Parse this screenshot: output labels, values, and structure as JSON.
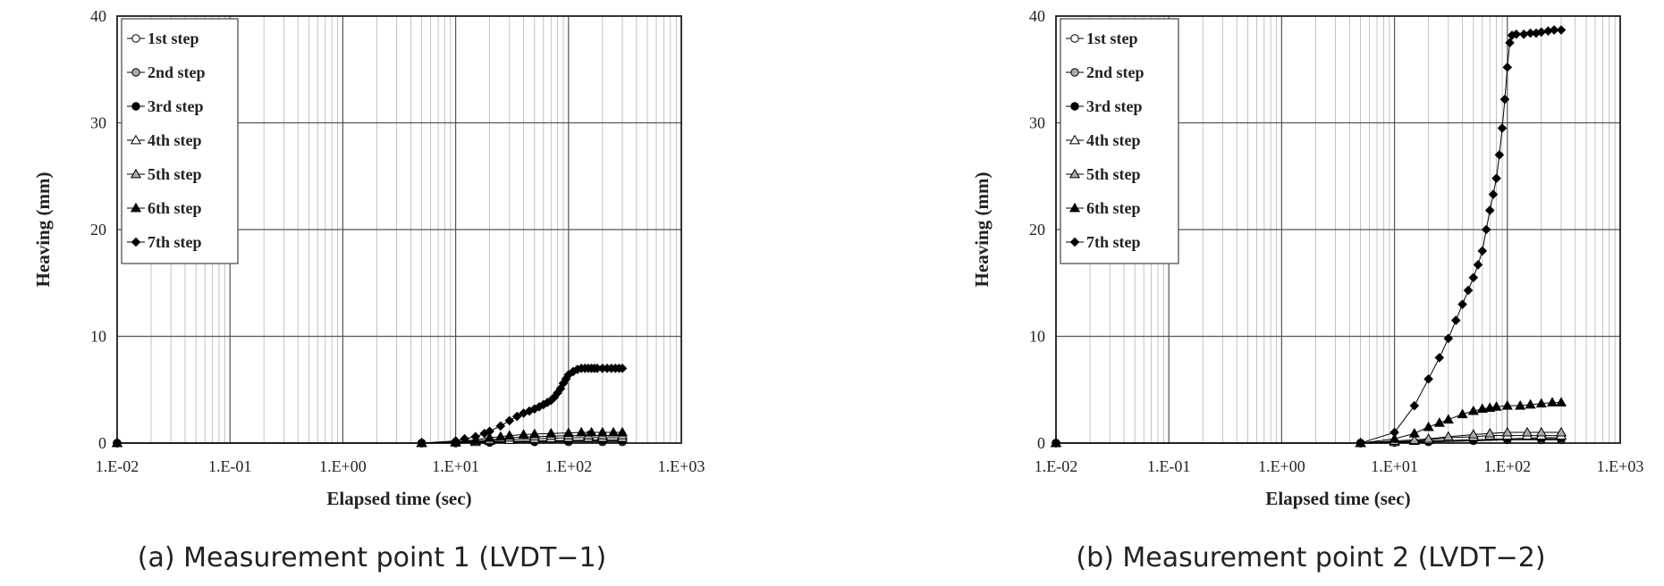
{
  "chart_data": [
    {
      "type": "scatter",
      "caption": "(a) Measurement point 1 (LVDT−1)",
      "xlabel": "Elapsed time (sec)",
      "ylabel": "Heaving (mm)",
      "xscale": "log",
      "xlim": [
        0.01,
        1000
      ],
      "ylim": [
        0,
        40
      ],
      "xticks": [
        "1.E-02",
        "1.E-01",
        "1.E+00",
        "1.E+01",
        "1.E+02",
        "1.E+03"
      ],
      "yticks": [
        "0",
        "10",
        "20",
        "30",
        "40"
      ],
      "legend_position": "top-left",
      "series": [
        {
          "name": "1st step",
          "marker": "circle-open",
          "x": [
            0.01,
            5,
            10,
            20,
            50,
            100,
            200,
            300
          ],
          "y": [
            0,
            0,
            0,
            0.05,
            0.1,
            0.1,
            0.1,
            0.1
          ]
        },
        {
          "name": "2nd step",
          "marker": "circle-gray",
          "x": [
            0.01,
            5,
            10,
            20,
            50,
            100,
            200,
            300
          ],
          "y": [
            0,
            0,
            0.05,
            0.1,
            0.15,
            0.2,
            0.2,
            0.2
          ]
        },
        {
          "name": "3rd step",
          "marker": "circle-filled",
          "x": [
            0.01,
            5,
            10,
            20,
            50,
            100,
            200,
            300
          ],
          "y": [
            0,
            0,
            0.05,
            0.1,
            0.2,
            0.25,
            0.3,
            0.3
          ]
        },
        {
          "name": "4th step",
          "marker": "triangle-open",
          "x": [
            0.01,
            5,
            10,
            15,
            20,
            30,
            50,
            70,
            100,
            150,
            200,
            300
          ],
          "y": [
            0,
            0,
            0.05,
            0.1,
            0.2,
            0.3,
            0.4,
            0.45,
            0.5,
            0.5,
            0.5,
            0.5
          ]
        },
        {
          "name": "5th step",
          "marker": "triangle-gray",
          "x": [
            0.01,
            5,
            10,
            15,
            20,
            30,
            50,
            70,
            100,
            150,
            200,
            300
          ],
          "y": [
            0,
            0,
            0.1,
            0.2,
            0.3,
            0.5,
            0.6,
            0.65,
            0.7,
            0.7,
            0.7,
            0.7
          ]
        },
        {
          "name": "6th step",
          "marker": "triangle-filled",
          "x": [
            0.01,
            5,
            10,
            15,
            20,
            25,
            30,
            40,
            50,
            70,
            100,
            130,
            160,
            200,
            250,
            300
          ],
          "y": [
            0,
            0,
            0.1,
            0.3,
            0.5,
            0.6,
            0.7,
            0.8,
            0.85,
            0.9,
            0.95,
            1.0,
            1.0,
            1.0,
            1.0,
            1.0
          ]
        },
        {
          "name": "7th step",
          "marker": "diamond-filled",
          "x": [
            0.01,
            5,
            10,
            12,
            15,
            18,
            20,
            25,
            30,
            35,
            40,
            45,
            50,
            55,
            60,
            65,
            70,
            75,
            80,
            85,
            90,
            95,
            100,
            110,
            120,
            130,
            140,
            150,
            160,
            170,
            180,
            200,
            220,
            240,
            260,
            280,
            300
          ],
          "y": [
            0,
            0,
            0.2,
            0.4,
            0.6,
            0.9,
            1.1,
            1.6,
            2.1,
            2.5,
            2.8,
            3.0,
            3.2,
            3.4,
            3.6,
            3.8,
            4.0,
            4.3,
            4.7,
            5.1,
            5.6,
            6.0,
            6.4,
            6.7,
            6.9,
            7.0,
            7.0,
            7.0,
            7.0,
            7.0,
            7.0,
            7.0,
            7.0,
            7.0,
            7.0,
            7.0,
            7.0
          ]
        }
      ]
    },
    {
      "type": "scatter",
      "caption": "(b) Measurement point 2 (LVDT−2)",
      "xlabel": "Elapsed time (sec)",
      "ylabel": "Heaving (mm)",
      "xscale": "log",
      "xlim": [
        0.01,
        1000
      ],
      "ylim": [
        0,
        40
      ],
      "xticks": [
        "1.E-02",
        "1.E-01",
        "1.E+00",
        "1.E+01",
        "1.E+02",
        "1.E+03"
      ],
      "yticks": [
        "0",
        "10",
        "20",
        "30",
        "40"
      ],
      "legend_position": "top-left",
      "series": [
        {
          "name": "1st step",
          "marker": "circle-open",
          "x": [
            0.01,
            5,
            10,
            20,
            50,
            100,
            200,
            300
          ],
          "y": [
            0,
            0,
            0.05,
            0.1,
            0.2,
            0.3,
            0.3,
            0.3
          ]
        },
        {
          "name": "2nd step",
          "marker": "circle-gray",
          "x": [
            0.01,
            5,
            10,
            20,
            50,
            100,
            200,
            300
          ],
          "y": [
            0,
            0,
            0.1,
            0.2,
            0.3,
            0.4,
            0.4,
            0.4
          ]
        },
        {
          "name": "3rd step",
          "marker": "circle-filled",
          "x": [
            0.01,
            5,
            10,
            20,
            50,
            100,
            200,
            300
          ],
          "y": [
            0,
            0,
            0.1,
            0.2,
            0.3,
            0.4,
            0.5,
            0.5
          ]
        },
        {
          "name": "4th step",
          "marker": "triangle-open",
          "x": [
            0.01,
            5,
            10,
            15,
            20,
            30,
            50,
            70,
            100,
            150,
            200,
            300
          ],
          "y": [
            0,
            0,
            0.1,
            0.2,
            0.3,
            0.5,
            0.6,
            0.7,
            0.7,
            0.7,
            0.7,
            0.7
          ]
        },
        {
          "name": "5th step",
          "marker": "triangle-gray",
          "x": [
            0.01,
            5,
            10,
            15,
            20,
            30,
            50,
            70,
            100,
            150,
            200,
            300
          ],
          "y": [
            0,
            0,
            0.2,
            0.3,
            0.4,
            0.6,
            0.8,
            0.9,
            1.0,
            1.0,
            1.0,
            1.0
          ]
        },
        {
          "name": "6th step",
          "marker": "triangle-filled",
          "x": [
            0.01,
            5,
            10,
            15,
            20,
            25,
            30,
            40,
            50,
            60,
            70,
            80,
            100,
            130,
            160,
            200,
            250,
            300
          ],
          "y": [
            0,
            0,
            0.4,
            0.9,
            1.5,
            1.9,
            2.2,
            2.7,
            3.0,
            3.2,
            3.3,
            3.4,
            3.5,
            3.5,
            3.6,
            3.7,
            3.8,
            3.8
          ]
        },
        {
          "name": "7th step",
          "marker": "diamond-filled",
          "x": [
            0.01,
            5,
            10,
            15,
            20,
            25,
            30,
            35,
            40,
            45,
            50,
            55,
            60,
            65,
            70,
            75,
            80,
            85,
            90,
            95,
            100,
            105,
            110,
            120,
            140,
            160,
            180,
            200,
            230,
            260,
            300
          ],
          "y": [
            0,
            0,
            1.0,
            3.5,
            6.0,
            8.0,
            9.8,
            11.5,
            13.0,
            14.3,
            15.5,
            16.7,
            18.0,
            20.0,
            21.8,
            23.3,
            24.8,
            27.0,
            29.5,
            32.2,
            35.2,
            37.5,
            38.2,
            38.3,
            38.3,
            38.4,
            38.4,
            38.5,
            38.6,
            38.7,
            38.7
          ]
        }
      ]
    }
  ]
}
